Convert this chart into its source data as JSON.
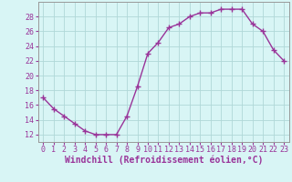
{
  "x": [
    0,
    1,
    2,
    3,
    4,
    5,
    6,
    7,
    8,
    9,
    10,
    11,
    12,
    13,
    14,
    15,
    16,
    17,
    18,
    19,
    20,
    21,
    22,
    23
  ],
  "y": [
    17,
    15.5,
    14.5,
    13.5,
    12.5,
    12,
    12,
    12,
    14.5,
    18.5,
    23,
    24.5,
    26.5,
    27,
    28,
    28.5,
    28.5,
    29,
    29,
    29,
    27,
    26,
    23.5,
    22
  ],
  "line_color": "#993399",
  "marker": "+",
  "marker_size": 4,
  "marker_linewidth": 1.0,
  "bg_color": "#d8f5f5",
  "grid_color": "#b0d8d8",
  "xlabel": "Windchill (Refroidissement éolien,°C)",
  "xlabel_fontsize": 7,
  "tick_color": "#993399",
  "tick_fontsize": 6,
  "xlim": [
    -0.5,
    23.5
  ],
  "ylim": [
    11,
    30
  ],
  "yticks": [
    12,
    14,
    16,
    18,
    20,
    22,
    24,
    26,
    28
  ],
  "xticks": [
    0,
    1,
    2,
    3,
    4,
    5,
    6,
    7,
    8,
    9,
    10,
    11,
    12,
    13,
    14,
    15,
    16,
    17,
    18,
    19,
    20,
    21,
    22,
    23
  ],
  "line_width": 1.0
}
